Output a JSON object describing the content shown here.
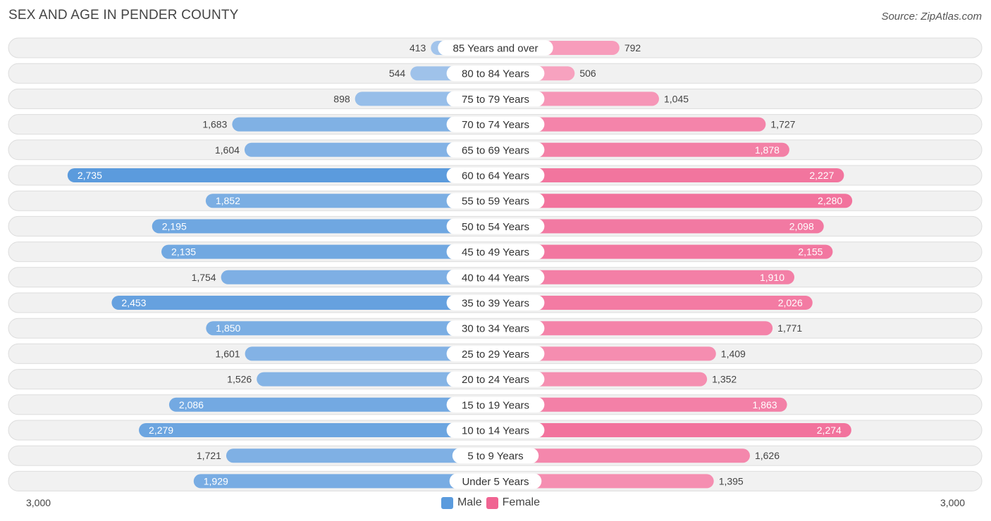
{
  "title": "SEX AND AGE IN PENDER COUNTY",
  "source": "Source: ZipAtlas.com",
  "colors": {
    "male_light": "#a7c7ec",
    "male_dark": "#5b9bdd",
    "female_light": "#f8a8c4",
    "female_dark": "#f06492",
    "row_bg": "#f1f1f1",
    "row_border": "#dddddd"
  },
  "chart_data": {
    "type": "bar",
    "orientation": "horizontal-diverging",
    "xlim": [
      -3000,
      3000
    ],
    "axis_left_label": "3,000",
    "axis_right_label": "3,000",
    "legend": [
      "Male",
      "Female"
    ],
    "legend_position": "bottom-center",
    "categories": [
      "85 Years and over",
      "80 to 84 Years",
      "75 to 79 Years",
      "70 to 74 Years",
      "65 to 69 Years",
      "60 to 64 Years",
      "55 to 59 Years",
      "50 to 54 Years",
      "45 to 49 Years",
      "40 to 44 Years",
      "35 to 39 Years",
      "30 to 34 Years",
      "25 to 29 Years",
      "20 to 24 Years",
      "15 to 19 Years",
      "10 to 14 Years",
      "5 to 9 Years",
      "Under 5 Years"
    ],
    "series": [
      {
        "name": "Male",
        "values": [
          413,
          544,
          898,
          1683,
          1604,
          2735,
          1852,
          2195,
          2135,
          1754,
          2453,
          1850,
          1601,
          1526,
          2086,
          2279,
          1721,
          1929
        ],
        "labels": [
          "413",
          "544",
          "898",
          "1,683",
          "1,604",
          "2,735",
          "1,852",
          "2,195",
          "2,135",
          "1,754",
          "2,453",
          "1,850",
          "1,601",
          "1,526",
          "2,086",
          "2,279",
          "1,721",
          "1,929"
        ]
      },
      {
        "name": "Female",
        "values": [
          792,
          506,
          1045,
          1727,
          1878,
          2227,
          2280,
          2098,
          2155,
          1910,
          2026,
          1771,
          1409,
          1352,
          1863,
          2274,
          1626,
          1395
        ],
        "labels": [
          "792",
          "506",
          "1,045",
          "1,727",
          "1,878",
          "2,227",
          "2,280",
          "2,098",
          "2,155",
          "1,910",
          "2,026",
          "1,771",
          "1,409",
          "1,352",
          "1,863",
          "2,274",
          "1,626",
          "1,395"
        ]
      }
    ]
  }
}
